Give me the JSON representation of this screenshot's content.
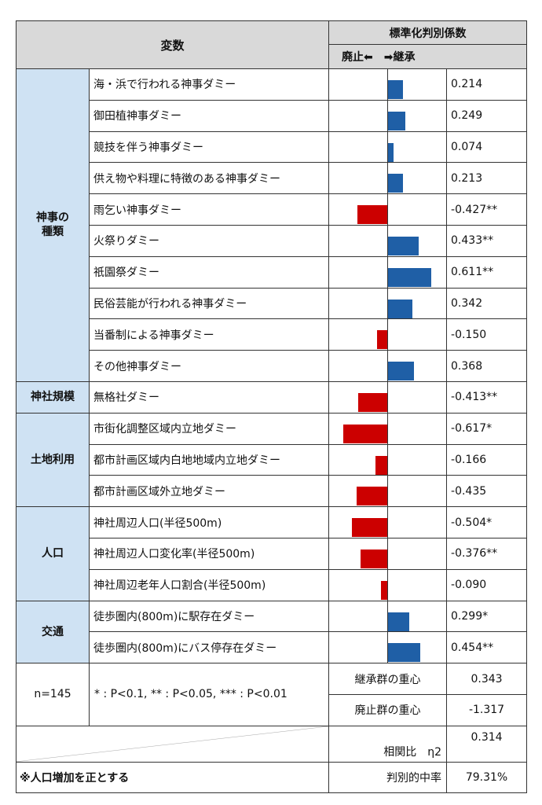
{
  "header": {
    "variable": "変数",
    "coef": "標準化判別係数",
    "direction": "廃止⬅　➡継承"
  },
  "colors": {
    "positive": "#1f5fa6",
    "negative": "#cc0000",
    "group_bg": "#cfe2f3",
    "header_bg": "#d9d9d9"
  },
  "chart_data": {
    "type": "bar",
    "orientation": "horizontal",
    "title": "標準化判別係数",
    "xlabel": "廃止⬅　➡継承",
    "groups": [
      {
        "name": "神事の種類",
        "rows": [
          {
            "label": "海・浜で行われる神事ダミー",
            "value": 0.214,
            "text": "0.214"
          },
          {
            "label": "御田植神事ダミー",
            "value": 0.249,
            "text": "0.249"
          },
          {
            "label": "競技を伴う神事ダミー",
            "value": 0.074,
            "text": "0.074"
          },
          {
            "label": "供え物や料理に特徴のある神事ダミー",
            "value": 0.213,
            "text": "0.213"
          },
          {
            "label": "雨乞い神事ダミー",
            "value": -0.427,
            "text": "-0.427**"
          },
          {
            "label": "火祭りダミー",
            "value": 0.433,
            "text": "0.433**"
          },
          {
            "label": "祇園祭ダミー",
            "value": 0.611,
            "text": "0.611**"
          },
          {
            "label": "民俗芸能が行われる神事ダミー",
            "value": 0.342,
            "text": "0.342"
          },
          {
            "label": "当番制による神事ダミー",
            "value": -0.15,
            "text": "-0.150"
          },
          {
            "label": "その他神事ダミー",
            "value": 0.368,
            "text": "0.368"
          }
        ]
      },
      {
        "name": "神社規模",
        "rows": [
          {
            "label": "無格社ダミー",
            "value": -0.413,
            "text": "-0.413**"
          }
        ]
      },
      {
        "name": "土地利用",
        "rows": [
          {
            "label": "市街化調整区域内立地ダミー",
            "value": -0.617,
            "text": "-0.617*"
          },
          {
            "label": "都市計画区域内白地地域内立地ダミー",
            "value": -0.166,
            "text": "-0.166"
          },
          {
            "label": "都市計画区域外立地ダミー",
            "value": -0.435,
            "text": "-0.435"
          }
        ]
      },
      {
        "name": "人口",
        "rows": [
          {
            "label": "神社周辺人口(半径500m)",
            "value": -0.504,
            "text": "-0.504*"
          },
          {
            "label": "神社周辺人口変化率(半径500m)",
            "value": -0.376,
            "text": "-0.376**"
          },
          {
            "label": "神社周辺老年人口割合(半径500m)",
            "value": -0.09,
            "text": "-0.090"
          }
        ]
      },
      {
        "name": "交通",
        "rows": [
          {
            "label": "徒歩圏内(800m)に駅存在ダミー",
            "value": 0.299,
            "text": "0.299*"
          },
          {
            "label": "徒歩圏内(800m)にバス停存在ダミー",
            "value": 0.454,
            "text": "0.454**"
          }
        ]
      }
    ]
  },
  "footer": {
    "n": "n=145",
    "significance": "* : P<0.1, ** : P<0.05, *** : P<0.01",
    "succession_centroid_label": "継承群の重心",
    "succession_centroid": "0.343",
    "abolition_centroid_label": "廃止群の重心",
    "abolition_centroid": "-1.317",
    "eta_label": "相関比　η2",
    "eta": "0.314",
    "hit_rate_label": "判別的中率",
    "hit_rate": "79.31%",
    "note": "※人口増加を正とする"
  }
}
